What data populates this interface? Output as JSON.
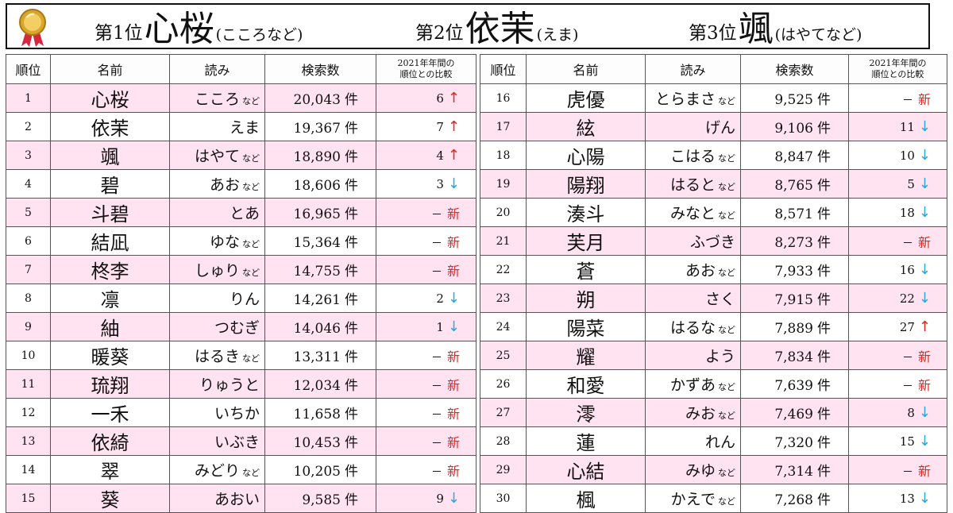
{
  "header": {
    "first": {
      "label": "第1位",
      "name": "心桜",
      "yomi": "(こころなど)"
    },
    "second": {
      "label": "第2位",
      "name": "依茉",
      "yomi": "(えま)"
    },
    "third": {
      "label": "第3位",
      "name": "颯",
      "yomi": "(はやてなど)"
    }
  },
  "columns": {
    "rank": "順位",
    "name": "名前",
    "yomi": "読み",
    "count": "検索数",
    "compare_line1": "2021年年間の",
    "compare_line2": "順位との比較"
  },
  "labels": {
    "ken": "件",
    "nado": "など",
    "new": "新",
    "dash": "－"
  },
  "colors": {
    "row_pink": "#ffe3f1",
    "up_arrow": "#e0261f",
    "down_arrow": "#2aa7dc",
    "new_text": "#e0261f"
  },
  "rows": [
    {
      "rank": "1",
      "name": "心桜",
      "yomi": "こころ",
      "nado": true,
      "count": "20,043",
      "prev": "6",
      "trend": "up"
    },
    {
      "rank": "2",
      "name": "依茉",
      "yomi": "えま",
      "nado": false,
      "count": "19,367",
      "prev": "7",
      "trend": "up"
    },
    {
      "rank": "3",
      "name": "颯",
      "yomi": "はやて",
      "nado": true,
      "count": "18,890",
      "prev": "4",
      "trend": "up"
    },
    {
      "rank": "4",
      "name": "碧",
      "yomi": "あお",
      "nado": true,
      "count": "18,606",
      "prev": "3",
      "trend": "down"
    },
    {
      "rank": "5",
      "name": "斗碧",
      "yomi": "とあ",
      "nado": false,
      "count": "16,965",
      "prev": "－",
      "trend": "new"
    },
    {
      "rank": "6",
      "name": "結凪",
      "yomi": "ゆな",
      "nado": true,
      "count": "15,364",
      "prev": "－",
      "trend": "new"
    },
    {
      "rank": "7",
      "name": "柊李",
      "yomi": "しゅり",
      "nado": true,
      "count": "14,755",
      "prev": "－",
      "trend": "new"
    },
    {
      "rank": "8",
      "name": "凛",
      "yomi": "りん",
      "nado": false,
      "count": "14,261",
      "prev": "2",
      "trend": "down"
    },
    {
      "rank": "9",
      "name": "紬",
      "yomi": "つむぎ",
      "nado": false,
      "count": "14,046",
      "prev": "1",
      "trend": "down"
    },
    {
      "rank": "10",
      "name": "暖葵",
      "yomi": "はるき",
      "nado": true,
      "count": "13,311",
      "prev": "－",
      "trend": "new"
    },
    {
      "rank": "11",
      "name": "琉翔",
      "yomi": "りゅうと",
      "nado": false,
      "count": "12,034",
      "prev": "－",
      "trend": "new"
    },
    {
      "rank": "12",
      "name": "一禾",
      "yomi": "いちか",
      "nado": false,
      "count": "11,658",
      "prev": "－",
      "trend": "new"
    },
    {
      "rank": "13",
      "name": "依綺",
      "yomi": "いぶき",
      "nado": false,
      "count": "10,453",
      "prev": "－",
      "trend": "new"
    },
    {
      "rank": "14",
      "name": "翠",
      "yomi": "みどり",
      "nado": true,
      "count": "10,205",
      "prev": "－",
      "trend": "new"
    },
    {
      "rank": "15",
      "name": "葵",
      "yomi": "あおい",
      "nado": false,
      "count": "9,585",
      "prev": "9",
      "trend": "down"
    },
    {
      "rank": "16",
      "name": "虎優",
      "yomi": "とらまさ",
      "nado": true,
      "count": "9,525",
      "prev": "－",
      "trend": "new"
    },
    {
      "rank": "17",
      "name": "絃",
      "yomi": "げん",
      "nado": false,
      "count": "9,106",
      "prev": "11",
      "trend": "down"
    },
    {
      "rank": "18",
      "name": "心陽",
      "yomi": "こはる",
      "nado": true,
      "count": "8,847",
      "prev": "10",
      "trend": "down"
    },
    {
      "rank": "19",
      "name": "陽翔",
      "yomi": "はると",
      "nado": true,
      "count": "8,765",
      "prev": "5",
      "trend": "down"
    },
    {
      "rank": "20",
      "name": "湊斗",
      "yomi": "みなと",
      "nado": true,
      "count": "8,571",
      "prev": "18",
      "trend": "down"
    },
    {
      "rank": "21",
      "name": "芙月",
      "yomi": "ふづき",
      "nado": false,
      "count": "8,273",
      "prev": "－",
      "trend": "new"
    },
    {
      "rank": "22",
      "name": "蒼",
      "yomi": "あお",
      "nado": true,
      "count": "7,933",
      "prev": "16",
      "trend": "down"
    },
    {
      "rank": "23",
      "name": "朔",
      "yomi": "さく",
      "nado": false,
      "count": "7,915",
      "prev": "22",
      "trend": "down"
    },
    {
      "rank": "24",
      "name": "陽菜",
      "yomi": "はるな",
      "nado": true,
      "count": "7,889",
      "prev": "27",
      "trend": "up"
    },
    {
      "rank": "25",
      "name": "耀",
      "yomi": "よう",
      "nado": false,
      "count": "7,834",
      "prev": "－",
      "trend": "new"
    },
    {
      "rank": "26",
      "name": "和愛",
      "yomi": "かずあ",
      "nado": true,
      "count": "7,639",
      "prev": "－",
      "trend": "new"
    },
    {
      "rank": "27",
      "name": "澪",
      "yomi": "みお",
      "nado": true,
      "count": "7,469",
      "prev": "8",
      "trend": "down"
    },
    {
      "rank": "28",
      "name": "蓮",
      "yomi": "れん",
      "nado": false,
      "count": "7,320",
      "prev": "15",
      "trend": "down"
    },
    {
      "rank": "29",
      "name": "心結",
      "yomi": "みゆ",
      "nado": true,
      "count": "7,314",
      "prev": "－",
      "trend": "new"
    },
    {
      "rank": "30",
      "name": "楓",
      "yomi": "かえで",
      "nado": true,
      "count": "7,268",
      "prev": "13",
      "trend": "down"
    }
  ]
}
